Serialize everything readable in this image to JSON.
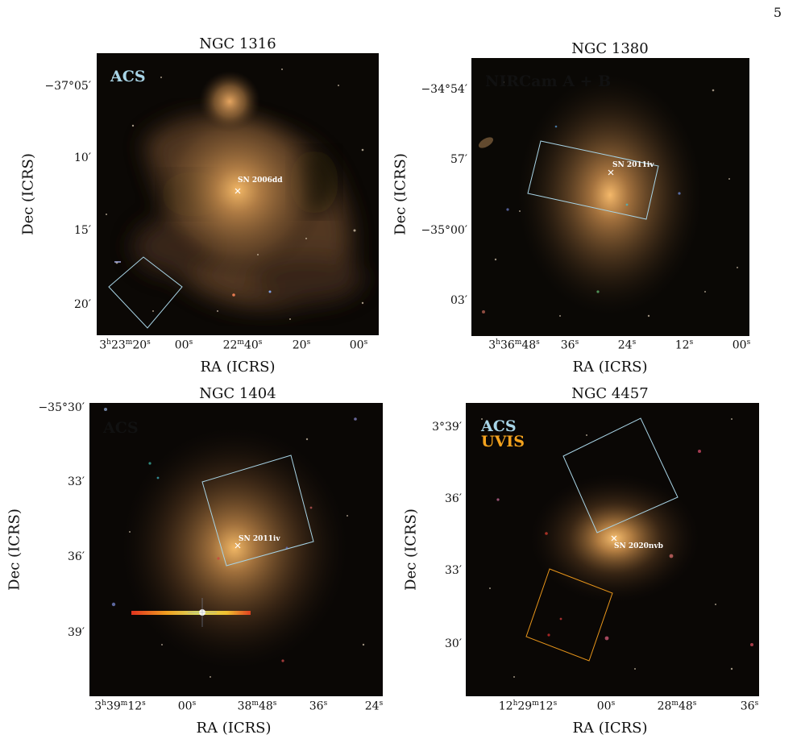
{
  "page_number": "5",
  "colors": {
    "acs": "#a8d4e6",
    "uvis": "#f3a21d",
    "footprint_acs": "#a8d4e6",
    "footprint_uvis": "#e8951a"
  },
  "panels": [
    {
      "id": "ngc1316",
      "title": "NGC 1316",
      "instruments": [
        {
          "label": "ACS",
          "color": "#a8d4e6"
        }
      ],
      "sn_label": "SN 2006dd",
      "ylabel": "Dec (ICRS)",
      "xlabel": "RA (ICRS)",
      "yticks": [
        "−37°05′",
        "10′",
        "15′",
        "20′"
      ],
      "xticks": [
        "3h23m20s",
        "00s",
        "22m40s",
        "20s",
        "00s"
      ]
    },
    {
      "id": "ngc1380",
      "title": "NGC 1380",
      "instruments": [
        {
          "label": "NIRCam A + B",
          "color": "#a8d4e6"
        }
      ],
      "sn_label": "SN 2011iv",
      "ylabel": "Dec (ICRS)",
      "xlabel": "RA (ICRS)",
      "yticks": [
        "−34°54′",
        "57′",
        "−35°00′",
        "03′"
      ],
      "xticks": [
        "3h36m48s",
        "36s",
        "24s",
        "12s",
        "00s"
      ]
    },
    {
      "id": "ngc1404",
      "title": "NGC 1404",
      "instruments": [
        {
          "label": "ACS",
          "color": "#a8d4e6"
        }
      ],
      "sn_label": "SN 2011iv",
      "ylabel": "Dec (ICRS)",
      "xlabel": "RA (ICRS)",
      "yticks": [
        "−35°30′",
        "33′",
        "36′",
        "39′"
      ],
      "xticks": [
        "3h39m12s",
        "00s",
        "38m48s",
        "36s",
        "24s"
      ]
    },
    {
      "id": "ngc4457",
      "title": "NGC 4457",
      "instruments": [
        {
          "label": "ACS",
          "color": "#a8d4e6"
        },
        {
          "label": "UVIS",
          "color": "#f3a21d"
        }
      ],
      "sn_label": "SN 2020nvb",
      "ylabel": "Dec (ICRS)",
      "xlabel": "RA (ICRS)",
      "yticks": [
        "3°39′",
        "36′",
        "33′",
        "30′"
      ],
      "xticks": [
        "12h29m12s",
        "00s",
        "28m48s",
        "36s"
      ]
    }
  ]
}
